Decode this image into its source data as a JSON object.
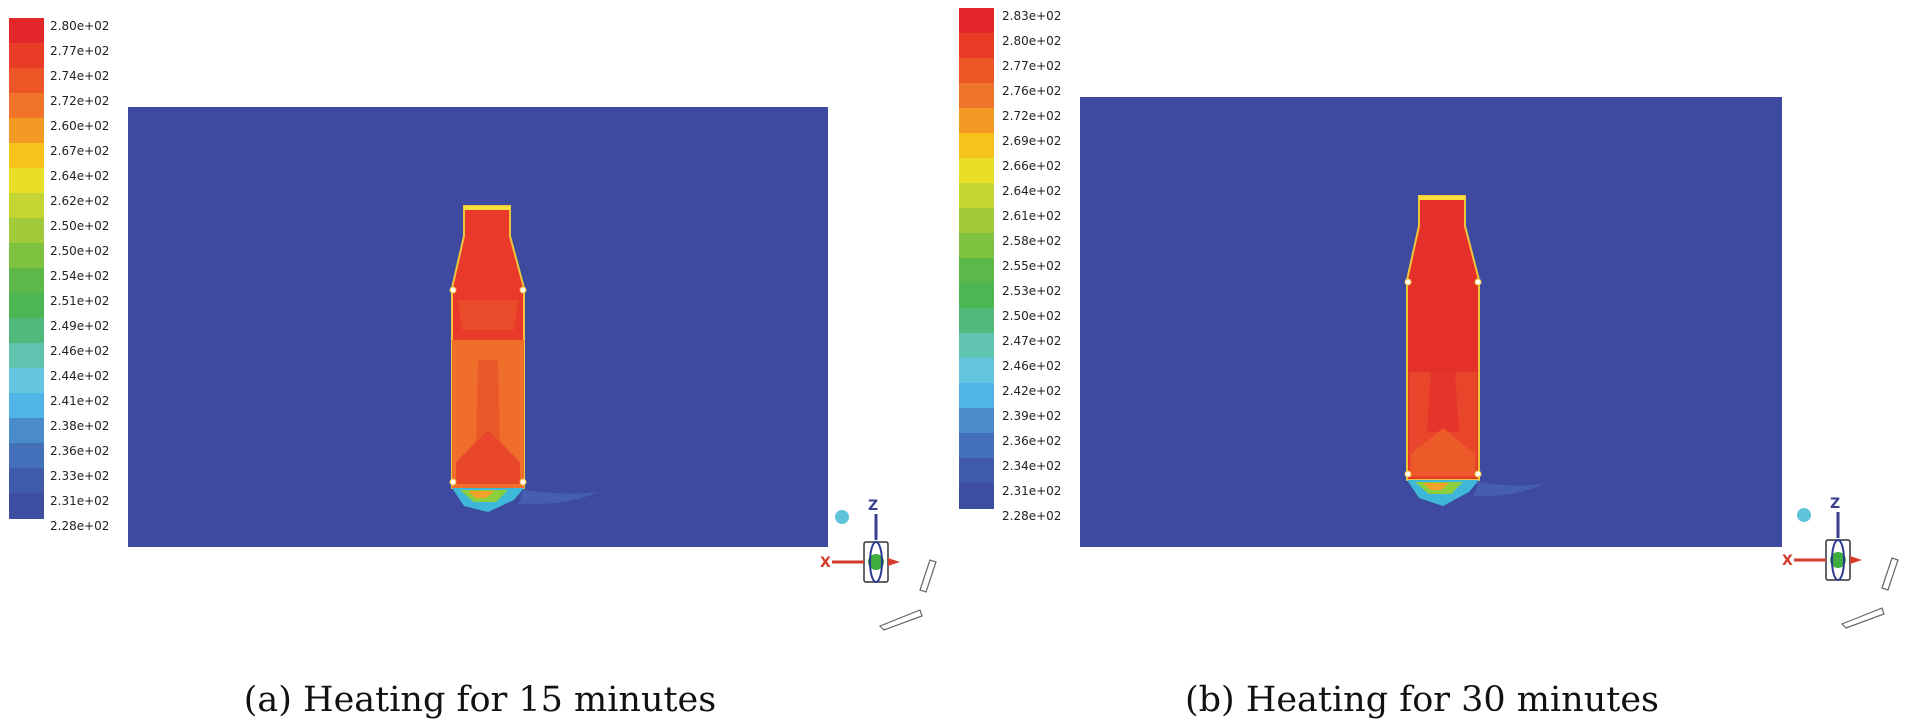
{
  "panels": [
    {
      "caption": "(a) Heating for 15 minutes",
      "legend": {
        "labels": [
          "2.80e+02",
          "2.77e+02",
          "2.74e+02",
          "2.72e+02",
          "2.60e+02",
          "2.67e+02",
          "2.64e+02",
          "2.62e+02",
          "2.50e+02",
          "2.50e+02",
          "2.54e+02",
          "2.51e+02",
          "2.49e+02",
          "2.46e+02",
          "2.44e+02",
          "2.41e+02",
          "2.38e+02",
          "2.36e+02",
          "2.33e+02",
          "2.31e+02",
          "2.28e+02"
        ],
        "colors": [
          "#e3262a",
          "#e83c26",
          "#ec5626",
          "#f07429",
          "#f39a25",
          "#f8c21c",
          "#e8df26",
          "#c4d533",
          "#a1cb3b",
          "#7fc23f",
          "#5cb949",
          "#4cb652",
          "#51b97c",
          "#5fc3b0",
          "#64c6de",
          "#4eb5e6",
          "#4a8cc9",
          "#4370b8",
          "#3f5ba9",
          "#3d4ea1"
        ]
      },
      "axes": {
        "z_label": "Z",
        "x_label": "X"
      }
    },
    {
      "caption": "(b) Heating for 30 minutes",
      "legend": {
        "labels": [
          "2.83e+02",
          "2.80e+02",
          "2.77e+02",
          "2.76e+02",
          "2.72e+02",
          "2.69e+02",
          "2.66e+02",
          "2.64e+02",
          "2.61e+02",
          "2.58e+02",
          "2.55e+02",
          "2.53e+02",
          "2.50e+02",
          "2.47e+02",
          "2.46e+02",
          "2.42e+02",
          "2.39e+02",
          "2.36e+02",
          "2.34e+02",
          "2.31e+02",
          "2.28e+02"
        ],
        "colors": [
          "#e3262a",
          "#e83c26",
          "#ec5626",
          "#f07429",
          "#f39a25",
          "#f8c21c",
          "#e8df26",
          "#c4d533",
          "#a1cb3b",
          "#7fc23f",
          "#5cb949",
          "#4cb652",
          "#51b97c",
          "#5fc3b0",
          "#64c6de",
          "#4eb5e6",
          "#4a8cc9",
          "#4370b8",
          "#3f5ba9",
          "#3d4ea1"
        ]
      },
      "axes": {
        "z_label": "Z",
        "x_label": "X"
      }
    }
  ]
}
